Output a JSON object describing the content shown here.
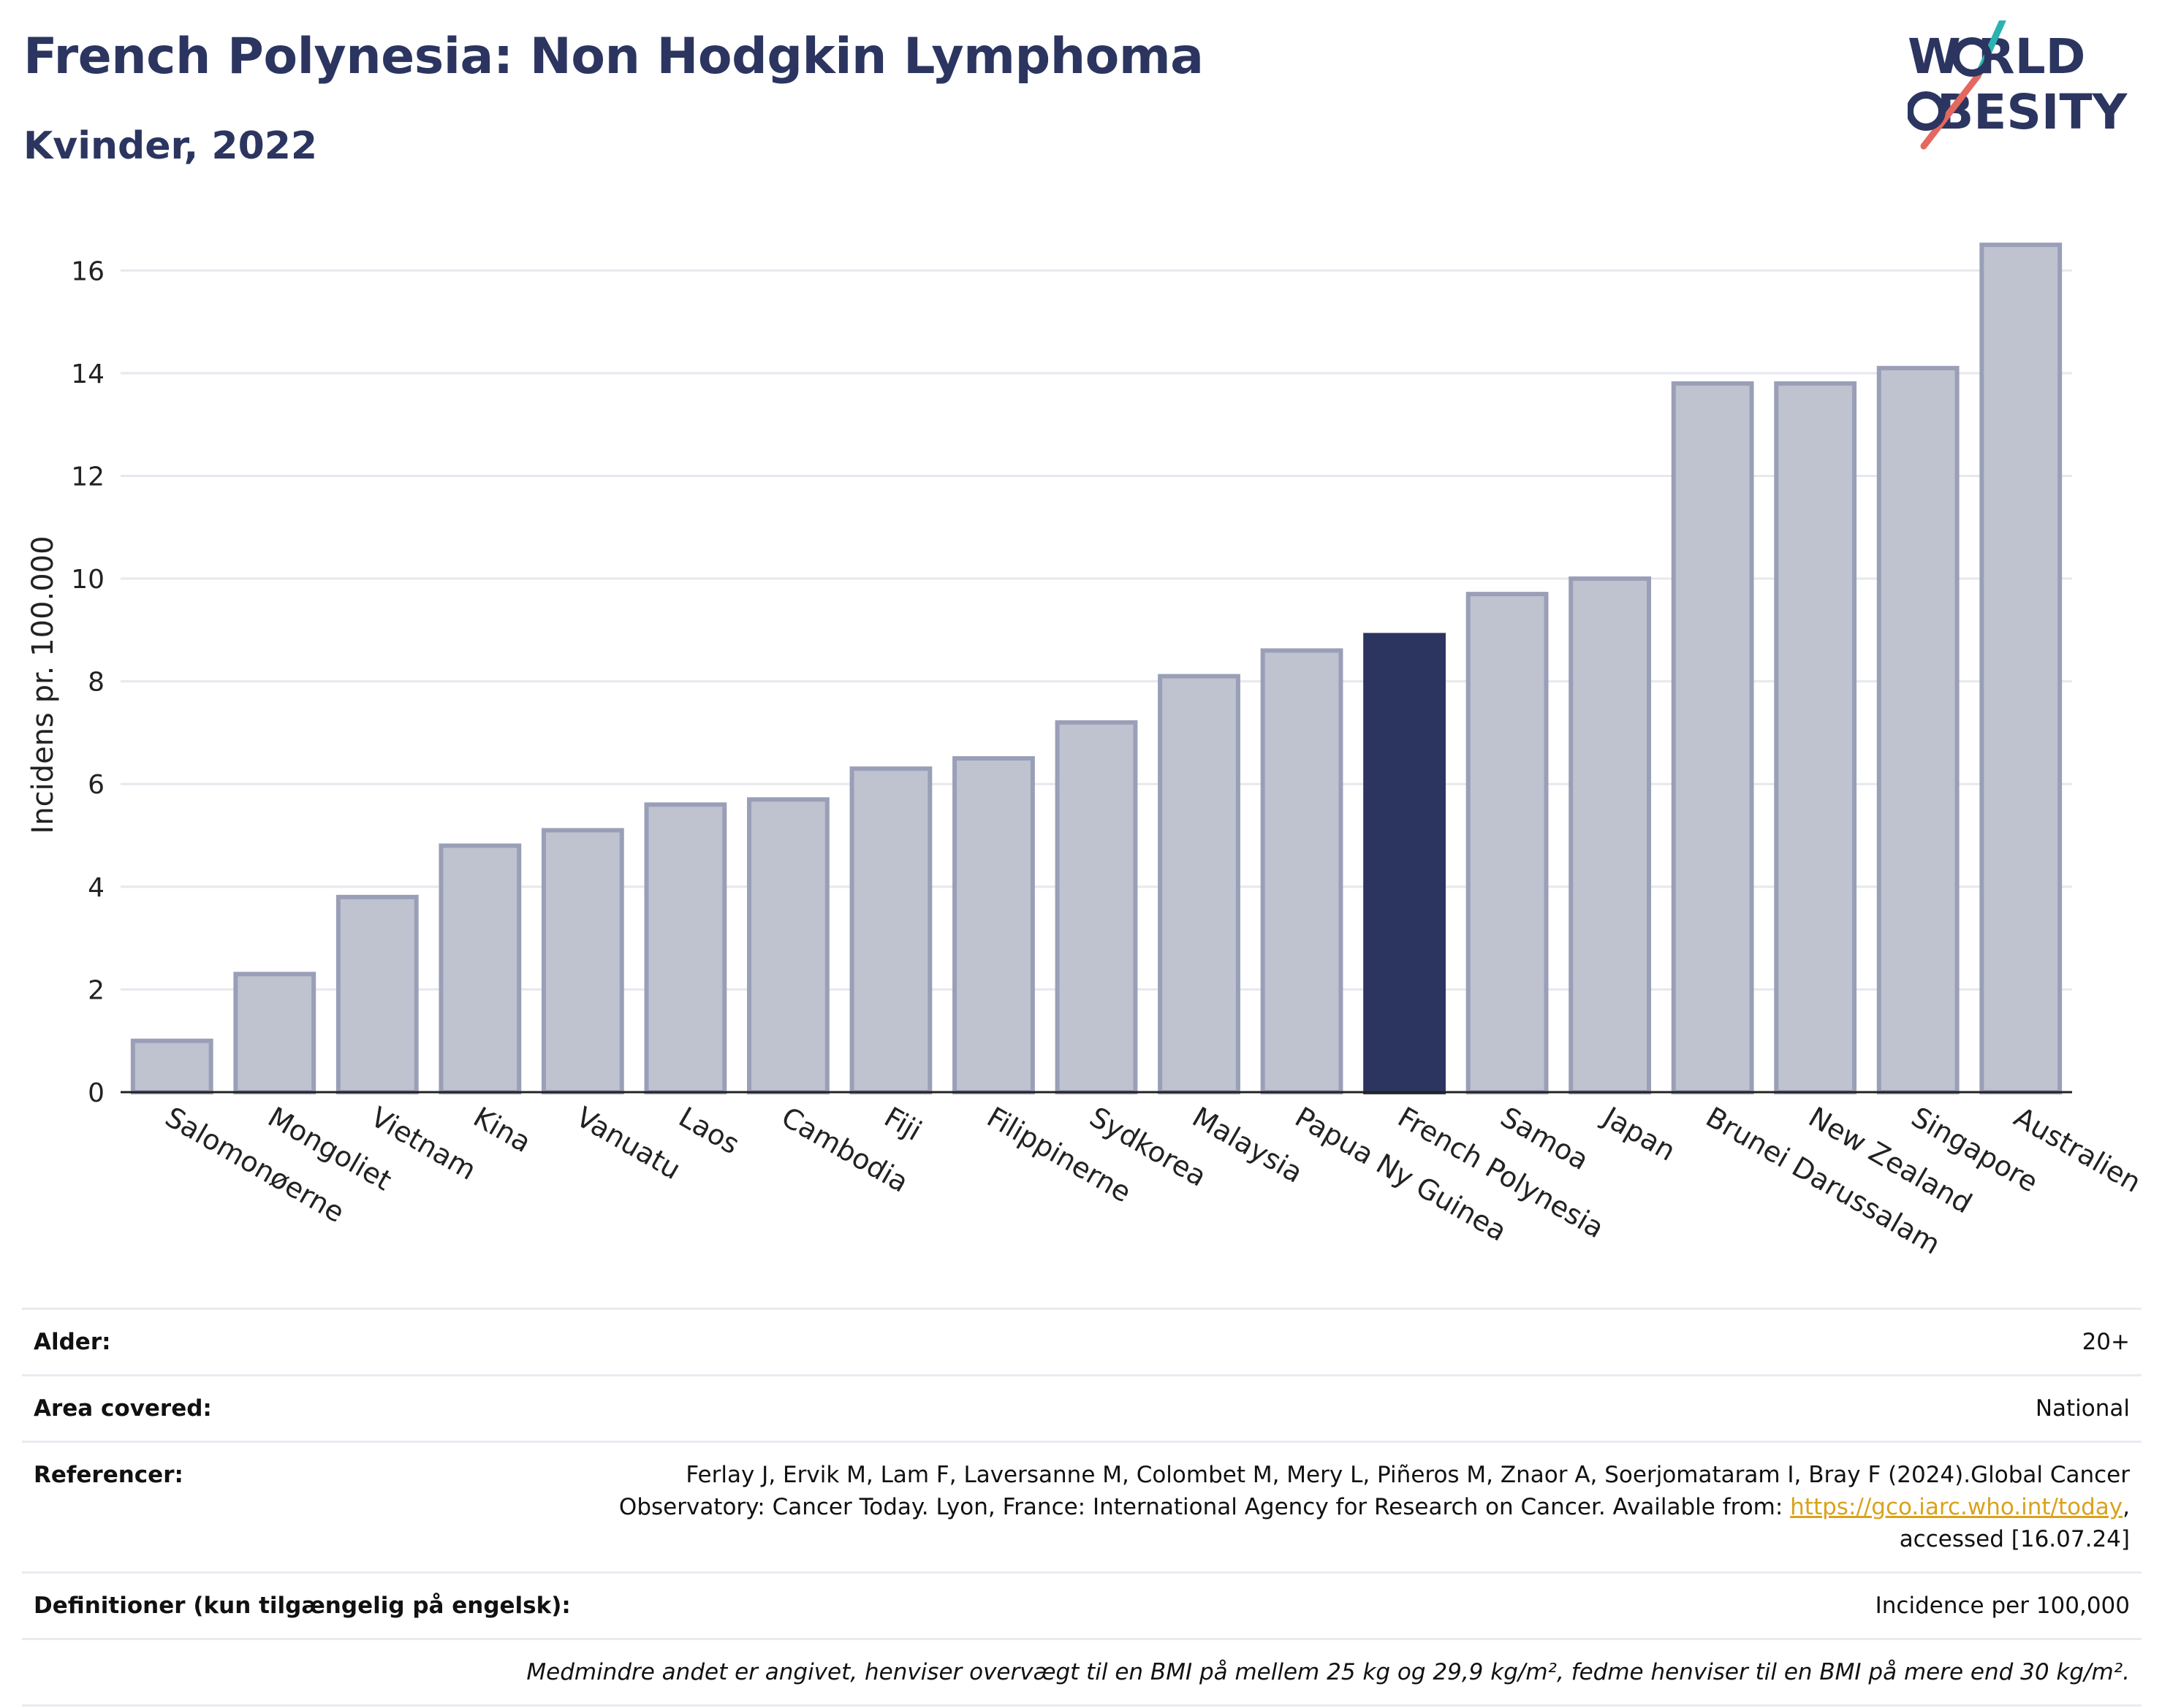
{
  "header": {
    "title": "French Polynesia: Non Hodgkin Lymphoma",
    "subtitle": "Kvinder, 2022"
  },
  "logo": {
    "line1": "W RLD",
    "line2": "BESITY",
    "colors": {
      "text": "#2b3560",
      "slash_top": "#2ab3b1",
      "slash_bottom": "#e4685d"
    }
  },
  "chart_data": {
    "type": "bar",
    "title": "French Polynesia: Non Hodgkin Lymphoma",
    "subtitle": "Kvinder, 2022",
    "ylabel": "Incidens pr. 100.000",
    "xlabel": "",
    "ylim": [
      0,
      17
    ],
    "yticks": [
      0,
      2,
      4,
      6,
      8,
      10,
      12,
      14,
      16
    ],
    "grid": true,
    "categories": [
      "Salomonøerne",
      "Mongoliet",
      "Vietnam",
      "Kina",
      "Vanuatu",
      "Laos",
      "Cambodia",
      "Fiji",
      "Filippinerne",
      "Sydkorea",
      "Malaysia",
      "Papua Ny Guinea",
      "French Polynesia",
      "Samoa",
      "Japan",
      "Brunei Darussalam",
      "New Zealand",
      "Singapore",
      "Australien"
    ],
    "values": [
      1.0,
      2.3,
      3.8,
      4.8,
      5.1,
      5.6,
      5.7,
      6.3,
      6.5,
      7.2,
      8.1,
      8.6,
      8.9,
      9.7,
      10.0,
      13.8,
      13.8,
      14.1,
      16.5
    ],
    "highlight": "French Polynesia",
    "colors": {
      "bar": "#bfc2cf",
      "bar_edge": "#9a9fb8",
      "highlight": "#2b3560",
      "grid": "#e6e8ee",
      "axis": "#222222"
    }
  },
  "meta": {
    "age_label": "Alder:",
    "age_value": "20+",
    "area_label": "Area covered:",
    "area_value": "National",
    "ref_label": "Referencer:",
    "ref_text_1": "Ferlay J, Ervik M, Lam F, Laversanne M, Colombet M, Mery L, Piñeros M, Znaor A, Soerjomataram I, Bray F (2024).Global Cancer Observatory: Cancer Today. Lyon, France: International Agency for Research on Cancer. Available from: ",
    "ref_link": "https://gco.iarc.who.int/today",
    "ref_text_2": ", accessed [16.07.24]",
    "def_label": "Definitioner (kun tilgængelig på engelsk):",
    "def_value": "Incidence per 100,000",
    "note": "Medmindre andet er angivet, henviser overvægt til en BMI på mellem 25 kg og 29,9 kg/m², fedme henviser til en BMI på mere end 30 kg/m²."
  }
}
